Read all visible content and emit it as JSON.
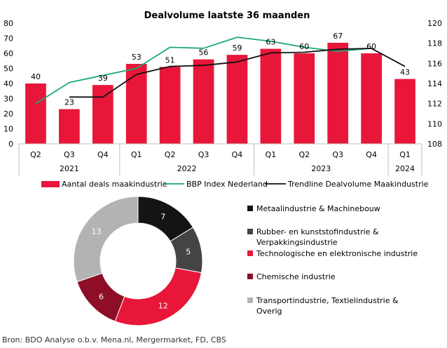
{
  "source": "Bron: BDO Analyse o.b.v. Mena.nl, Mergermarket, FD, CBS",
  "chart_data": [
    {
      "type": "bar",
      "title": "Dealvolume laatste 36 maanden",
      "categories": [
        "Q2",
        "Q3",
        "Q4",
        "Q1",
        "Q2",
        "Q3",
        "Q4",
        "Q1",
        "Q2",
        "Q3",
        "Q4",
        "Q1"
      ],
      "years": [
        {
          "label": "2021",
          "span": 3
        },
        {
          "label": "2022",
          "span": 4
        },
        {
          "label": "2023",
          "span": 4
        },
        {
          "label": "2024",
          "span": 1
        }
      ],
      "series": [
        {
          "name": "Aantal deals maakindustrie",
          "kind": "bar",
          "axis": "left",
          "color": "#e8173a",
          "values": [
            40,
            23,
            39,
            53,
            51,
            56,
            59,
            63,
            60,
            67,
            60,
            43
          ]
        },
        {
          "name": "BBP Index Nederland",
          "kind": "line",
          "axis": "right",
          "color": "#1aa97a",
          "values": [
            112.0,
            114.1,
            114.8,
            115.5,
            117.6,
            117.5,
            118.6,
            118.2,
            117.6,
            117.2,
            117.5,
            null
          ]
        },
        {
          "name": "Trendline Dealvolume Maakindustrie",
          "kind": "line",
          "axis": "left",
          "color": "#111111",
          "values": [
            null,
            31,
            31,
            46,
            51.3,
            52,
            54.3,
            60.3,
            60.7,
            62.7,
            63.3,
            51.3
          ]
        }
      ],
      "ylim_left": [
        0,
        80
      ],
      "yticks_left": [
        0,
        10,
        20,
        30,
        40,
        50,
        60,
        70,
        80
      ],
      "ylim_right": [
        108,
        120
      ],
      "yticks_right": [
        108,
        110,
        112,
        114,
        116,
        118,
        120
      ],
      "data_labels": true,
      "legend_position": "bottom"
    },
    {
      "type": "pie",
      "donut": true,
      "slices": [
        {
          "label": "Metaalindustrie & Machinebouw",
          "value": 7,
          "color": "#141414",
          "text_color": "#ffffff"
        },
        {
          "label": "Rubber- en kunststofindustrie & Verpakkingsindustrie",
          "value": 5,
          "color": "#444444",
          "text_color": "#ffffff"
        },
        {
          "label": "Technologische en elektronische industrie",
          "value": 12,
          "color": "#e8173a",
          "text_color": "#ffffff"
        },
        {
          "label": "Chemische industrie",
          "value": 6,
          "color": "#8e0d27",
          "text_color": "#ffffff"
        },
        {
          "label": "Transportindustrie, Textielindustrie & Overig",
          "value": 13,
          "color": "#b3b3b3",
          "text_color": "#ffffff"
        }
      ],
      "legend_position": "right"
    }
  ]
}
